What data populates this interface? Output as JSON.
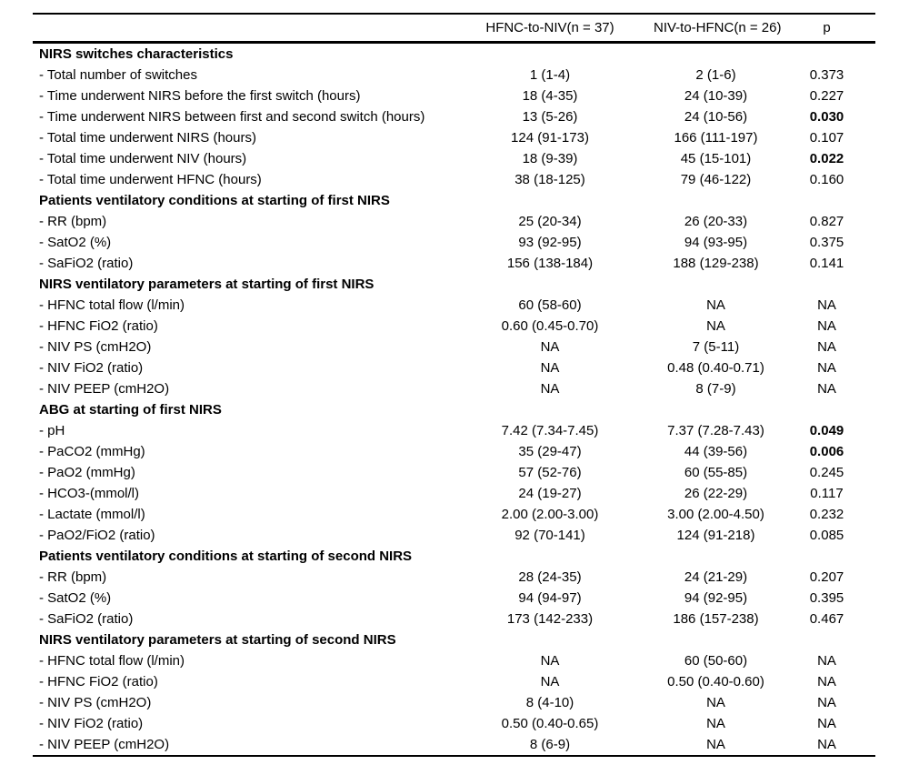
{
  "colors": {
    "background": "#ffffff",
    "text": "#000000",
    "rule": "#000000"
  },
  "table": {
    "columns": [
      "",
      "HFNC-to-NIV(n = 37)",
      "NIV-to-HFNC(n = 26)",
      "p"
    ],
    "sections": [
      {
        "title": "NIRS switches characteristics",
        "rows": [
          {
            "label": "- Total number of switches",
            "hfnc_to_niv": "1 (1-4)",
            "niv_to_hfnc": "2 (1-6)",
            "p": "0.373",
            "p_bold": false
          },
          {
            "label": "- Time underwent NIRS before the first switch (hours)",
            "hfnc_to_niv": "18 (4-35)",
            "niv_to_hfnc": "24 (10-39)",
            "p": "0.227",
            "p_bold": false
          },
          {
            "label": "- Time underwent NIRS between first and second switch (hours)",
            "hfnc_to_niv": "13 (5-26)",
            "niv_to_hfnc": "24 (10-56)",
            "p": "0.030",
            "p_bold": true
          },
          {
            "label": "- Total time underwent NIRS (hours)",
            "hfnc_to_niv": "124 (91-173)",
            "niv_to_hfnc": "166 (111-197)",
            "p": "0.107",
            "p_bold": false
          },
          {
            "label": "- Total time underwent NIV (hours)",
            "hfnc_to_niv": "18 (9-39)",
            "niv_to_hfnc": "45 (15-101)",
            "p": "0.022",
            "p_bold": true
          },
          {
            "label": "- Total time underwent HFNC (hours)",
            "hfnc_to_niv": "38 (18-125)",
            "niv_to_hfnc": "79 (46-122)",
            "p": "0.160",
            "p_bold": false
          }
        ]
      },
      {
        "title": "Patients ventilatory conditions at starting of first NIRS",
        "rows": [
          {
            "label": "- RR (bpm)",
            "hfnc_to_niv": "25 (20-34)",
            "niv_to_hfnc": "26 (20-33)",
            "p": "0.827",
            "p_bold": false
          },
          {
            "label": "- SatO2 (%)",
            "hfnc_to_niv": "93 (92-95)",
            "niv_to_hfnc": "94 (93-95)",
            "p": "0.375",
            "p_bold": false
          },
          {
            "label": "- SaFiO2 (ratio)",
            "hfnc_to_niv": "156 (138-184)",
            "niv_to_hfnc": "188 (129-238)",
            "p": "0.141",
            "p_bold": false
          }
        ]
      },
      {
        "title": "NIRS ventilatory parameters at starting of first NIRS",
        "rows": [
          {
            "label": "- HFNC total flow (l/min)",
            "hfnc_to_niv": "60 (58-60)",
            "niv_to_hfnc": "NA",
            "p": "NA",
            "p_bold": false
          },
          {
            "label": "- HFNC FiO2 (ratio)",
            "hfnc_to_niv": "0.60 (0.45-0.70)",
            "niv_to_hfnc": "NA",
            "p": "NA",
            "p_bold": false
          },
          {
            "label": "- NIV PS (cmH2O)",
            "hfnc_to_niv": "NA",
            "niv_to_hfnc": "7 (5-11)",
            "p": "NA",
            "p_bold": false
          },
          {
            "label": "- NIV FiO2 (ratio)",
            "hfnc_to_niv": "NA",
            "niv_to_hfnc": "0.48 (0.40-0.71)",
            "p": "NA",
            "p_bold": false
          },
          {
            "label": "- NIV PEEP (cmH2O)",
            "hfnc_to_niv": "NA",
            "niv_to_hfnc": "8 (7-9)",
            "p": "NA",
            "p_bold": false
          }
        ]
      },
      {
        "title": "ABG at starting of first NIRS",
        "rows": [
          {
            "label": "- pH",
            "hfnc_to_niv": "7.42 (7.34-7.45)",
            "niv_to_hfnc": "7.37 (7.28-7.43)",
            "p": "0.049",
            "p_bold": true
          },
          {
            "label": "- PaCO2 (mmHg)",
            "hfnc_to_niv": "35 (29-47)",
            "niv_to_hfnc": "44 (39-56)",
            "p": "0.006",
            "p_bold": true
          },
          {
            "label": "- PaO2 (mmHg)",
            "hfnc_to_niv": "57 (52-76)",
            "niv_to_hfnc": "60 (55-85)",
            "p": "0.245",
            "p_bold": false
          },
          {
            "label": "- HCO3-(mmol/l)",
            "hfnc_to_niv": "24 (19-27)",
            "niv_to_hfnc": "26 (22-29)",
            "p": "0.117",
            "p_bold": false
          },
          {
            "label": "- Lactate (mmol/l)",
            "hfnc_to_niv": "2.00 (2.00-3.00)",
            "niv_to_hfnc": "3.00 (2.00-4.50)",
            "p": "0.232",
            "p_bold": false
          },
          {
            "label": "- PaO2/FiO2 (ratio)",
            "hfnc_to_niv": "92 (70-141)",
            "niv_to_hfnc": "124 (91-218)",
            "p": "0.085",
            "p_bold": false
          }
        ]
      },
      {
        "title": "Patients ventilatory conditions at starting of second NIRS",
        "rows": [
          {
            "label": "- RR (bpm)",
            "hfnc_to_niv": "28 (24-35)",
            "niv_to_hfnc": "24 (21-29)",
            "p": "0.207",
            "p_bold": false
          },
          {
            "label": "- SatO2 (%)",
            "hfnc_to_niv": "94 (94-97)",
            "niv_to_hfnc": "94 (92-95)",
            "p": "0.395",
            "p_bold": false
          },
          {
            "label": "- SaFiO2 (ratio)",
            "hfnc_to_niv": "173 (142-233)",
            "niv_to_hfnc": "186 (157-238)",
            "p": "0.467",
            "p_bold": false
          }
        ]
      },
      {
        "title": "NIRS ventilatory parameters at starting of second NIRS",
        "rows": [
          {
            "label": "- HFNC total flow (l/min)",
            "hfnc_to_niv": "NA",
            "niv_to_hfnc": "60 (50-60)",
            "p": "NA",
            "p_bold": false
          },
          {
            "label": "- HFNC FiO2 (ratio)",
            "hfnc_to_niv": "NA",
            "niv_to_hfnc": "0.50 (0.40-0.60)",
            "p": "NA",
            "p_bold": false
          },
          {
            "label": "- NIV PS (cmH2O)",
            "hfnc_to_niv": "8 (4-10)",
            "niv_to_hfnc": "NA",
            "p": "NA",
            "p_bold": false
          },
          {
            "label": "- NIV FiO2 (ratio)",
            "hfnc_to_niv": "0.50 (0.40-0.65)",
            "niv_to_hfnc": "NA",
            "p": "NA",
            "p_bold": false
          },
          {
            "label": "- NIV PEEP (cmH2O)",
            "hfnc_to_niv": "8 (6-9)",
            "niv_to_hfnc": "NA",
            "p": "NA",
            "p_bold": false
          }
        ]
      }
    ]
  }
}
